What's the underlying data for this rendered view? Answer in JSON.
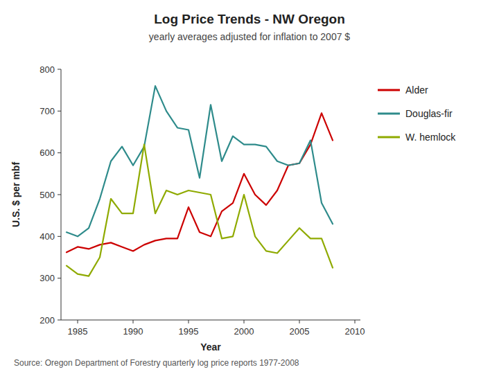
{
  "chart_data": {
    "type": "line",
    "title": "Log Price Trends - NW Oregon",
    "subtitle": "yearly averages adjusted for inflation to 2007 $",
    "x_label": "Year",
    "y_label": "U.S. $ per mbf",
    "annotations": [
      "Source: Oregon Department of Forestry quarterly log price reports 1977-2008"
    ],
    "x": [
      1984,
      1985,
      1986,
      1987,
      1988,
      1989,
      1990,
      1991,
      1992,
      1993,
      1994,
      1995,
      1996,
      1997,
      1998,
      1999,
      2000,
      2001,
      2002,
      2003,
      2004,
      2005,
      2006,
      2007,
      2008
    ],
    "series": [
      {
        "name": "Alder",
        "color": "#cc0000",
        "values": [
          362,
          375,
          370,
          380,
          385,
          375,
          365,
          380,
          390,
          395,
          395,
          470,
          410,
          400,
          460,
          480,
          550,
          500,
          475,
          510,
          570,
          575,
          620,
          695,
          630
        ]
      },
      {
        "name": "Douglas-fir",
        "color": "#2e8b8b",
        "values": [
          410,
          400,
          420,
          490,
          580,
          615,
          570,
          615,
          760,
          700,
          660,
          655,
          540,
          715,
          580,
          640,
          620,
          620,
          615,
          580,
          570,
          575,
          630,
          480,
          430
        ]
      },
      {
        "name": "W. hemlock",
        "color": "#8faa00",
        "values": [
          330,
          310,
          305,
          350,
          490,
          455,
          455,
          620,
          455,
          510,
          500,
          510,
          505,
          500,
          395,
          400,
          500,
          400,
          365,
          360,
          390,
          420,
          395,
          395,
          325
        ]
      }
    ],
    "xlim": [
      1983.5,
      2010.5
    ],
    "ylim": [
      200,
      800
    ],
    "xticks": [
      1985,
      1990,
      1995,
      2000,
      2005,
      2010
    ],
    "yticks": [
      200,
      300,
      400,
      500,
      600,
      700,
      800
    ],
    "grid": false,
    "legend": "right"
  }
}
